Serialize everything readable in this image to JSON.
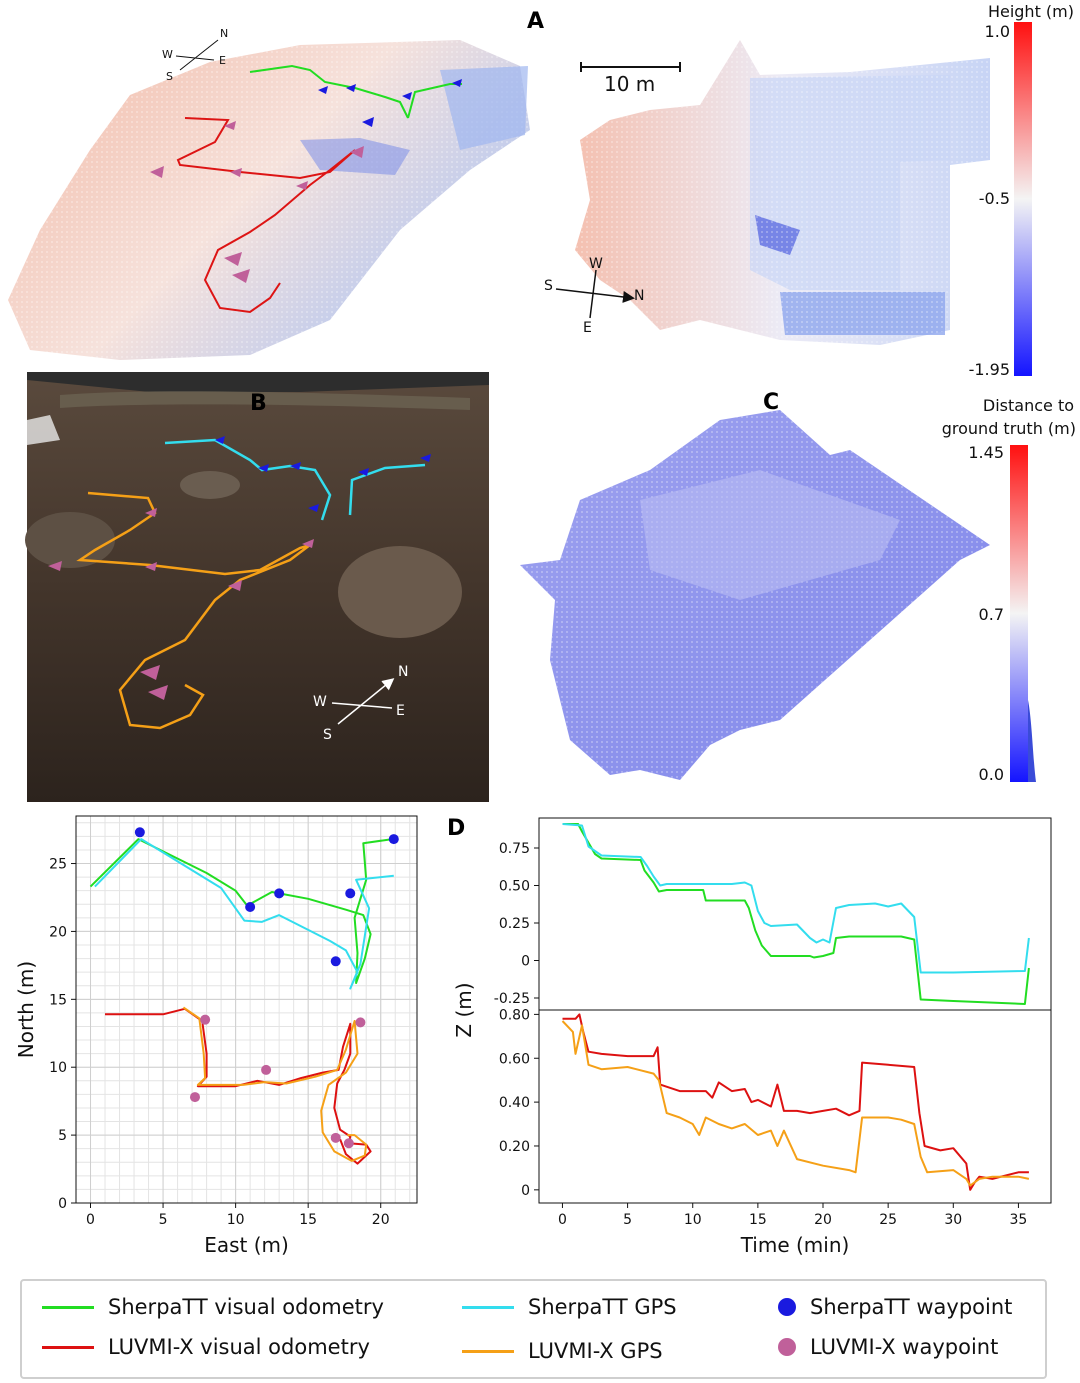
{
  "panel_letters": {
    "a": "A",
    "b": "B",
    "c": "C",
    "d": "D"
  },
  "panel_a": {
    "scale_bar": "10 m",
    "colorbar": {
      "title": "Height (m)",
      "max": "1.0",
      "mid": "-0.5",
      "min": "-1.95"
    },
    "compass_left": {
      "n": "N",
      "e": "E",
      "w": "W",
      "s": "S"
    },
    "compass_right": {
      "n": "N",
      "e": "E",
      "w": "W",
      "s": "S"
    }
  },
  "panel_b": {
    "compass": {
      "n": "N",
      "e": "E",
      "w": "W",
      "s": "S"
    }
  },
  "panel_c": {
    "colorbar": {
      "title_line1": "Distance to",
      "title_line2": "ground truth (m)",
      "max": "1.45",
      "mid": "0.7",
      "min": "0.0"
    }
  },
  "colors": {
    "sherpa_vo": "#22dd22",
    "sherpa_gps": "#33ddee",
    "luvmi_vo": "#dd1111",
    "luvmi_gps": "#f5a017",
    "sherpa_wp": "#1a1adf",
    "luvmi_wp": "#c0609a",
    "cb_high": "#ff1a1a",
    "cb_low": "#1a1aff"
  },
  "legend": {
    "sherpa_vo": "SherpaTT visual odometry",
    "sherpa_gps": "SherpaTT GPS",
    "sherpa_wp": "SherpaTT waypoint",
    "luvmi_vo": "LUVMI-X visual odometry",
    "luvmi_gps": "LUVMI-X GPS",
    "luvmi_wp": "LUVMI-X waypoint"
  },
  "chart_data": [
    {
      "type": "line",
      "panel": "map",
      "xlabel": "East (m)",
      "ylabel": "North (m)",
      "xlim": [
        -1,
        22.5
      ],
      "ylim": [
        0,
        28.5
      ],
      "xticks": [
        0,
        5,
        10,
        15,
        20
      ],
      "yticks": [
        0,
        5,
        10,
        15,
        20,
        25
      ],
      "grid": true,
      "series": [
        {
          "name": "SherpaTT visual odometry",
          "color_key": "sherpa_vo",
          "points": [
            [
              0,
              23.3
            ],
            [
              3.3,
              26.8
            ],
            [
              8,
              24.3
            ],
            [
              10,
              23
            ],
            [
              10.8,
              21.9
            ],
            [
              12.5,
              22.9
            ],
            [
              15,
              22.4
            ],
            [
              17.6,
              21.6
            ],
            [
              18.8,
              21.2
            ],
            [
              19.3,
              19.8
            ],
            [
              18.9,
              18
            ],
            [
              18.3,
              16.2
            ],
            [
              18.4,
              18.4
            ],
            [
              18.2,
              21
            ],
            [
              19,
              23.8
            ],
            [
              18.8,
              26.5
            ],
            [
              20.8,
              26.8
            ]
          ]
        },
        {
          "name": "SherpaTT GPS",
          "color_key": "sherpa_gps",
          "points": [
            [
              0.3,
              23.3
            ],
            [
              3.5,
              26.8
            ],
            [
              9,
              23.2
            ],
            [
              10.6,
              20.8
            ],
            [
              11.8,
              20.7
            ],
            [
              13,
              21.2
            ],
            [
              16.5,
              19.3
            ],
            [
              17.6,
              18.6
            ],
            [
              18.4,
              17
            ],
            [
              17.9,
              15.8
            ],
            [
              18.6,
              17.6
            ],
            [
              19.2,
              21.7
            ],
            [
              18.3,
              23.8
            ],
            [
              20.9,
              24.1
            ]
          ]
        },
        {
          "name": "LUVMI-X visual odometry",
          "color_key": "luvmi_vo",
          "points": [
            [
              1,
              13.9
            ],
            [
              3,
              13.9
            ],
            [
              5,
              13.9
            ],
            [
              6.5,
              14.3
            ],
            [
              7.7,
              13.4
            ],
            [
              8,
              11
            ],
            [
              8,
              9.3
            ],
            [
              7.4,
              8.6
            ],
            [
              10,
              8.6
            ],
            [
              11.5,
              9
            ],
            [
              13,
              8.7
            ],
            [
              14.5,
              9.2
            ],
            [
              16,
              9.6
            ],
            [
              17.1,
              9.8
            ],
            [
              17.4,
              11.5
            ],
            [
              17.9,
              13.2
            ],
            [
              17.9,
              11
            ],
            [
              17.5,
              9.8
            ],
            [
              17,
              8.8
            ],
            [
              16.8,
              7
            ],
            [
              17.2,
              5.4
            ],
            [
              17.9,
              4.9
            ],
            [
              17.8,
              4.4
            ],
            [
              19,
              4.3
            ],
            [
              19.3,
              3.8
            ],
            [
              18.4,
              2.9
            ],
            [
              17.6,
              3.6
            ],
            [
              17.2,
              4.7
            ]
          ]
        },
        {
          "name": "LUVMI-X GPS",
          "color_key": "luvmi_gps",
          "points": [
            [
              6.4,
              14.4
            ],
            [
              7.5,
              13.6
            ],
            [
              7.8,
              11
            ],
            [
              7.9,
              9.2
            ],
            [
              7.4,
              8.7
            ],
            [
              10.5,
              8.7
            ],
            [
              12,
              8.9
            ],
            [
              13.5,
              8.8
            ],
            [
              15.5,
              9.3
            ],
            [
              17,
              9.8
            ],
            [
              17.6,
              11.3
            ],
            [
              18.2,
              13.4
            ],
            [
              18.4,
              11
            ],
            [
              17.6,
              9.6
            ],
            [
              16.4,
              8.7
            ],
            [
              15.9,
              6.8
            ],
            [
              16,
              5.2
            ],
            [
              16.8,
              3.8
            ],
            [
              18,
              3.1
            ],
            [
              18.9,
              3.5
            ],
            [
              19,
              4.3
            ],
            [
              18.2,
              5
            ],
            [
              17.7,
              5
            ]
          ]
        }
      ],
      "sherpa_waypoints": [
        [
          3.4,
          27.3
        ],
        [
          11,
          21.8
        ],
        [
          13,
          22.8
        ],
        [
          17.9,
          22.8
        ],
        [
          16.9,
          17.8
        ],
        [
          20.9,
          26.8
        ]
      ],
      "luvmi_waypoints": [
        [
          7.9,
          13.5
        ],
        [
          18.6,
          13.3
        ],
        [
          12.1,
          9.8
        ],
        [
          7.2,
          7.8
        ],
        [
          16.9,
          4.8
        ],
        [
          17.8,
          4.4
        ]
      ]
    },
    {
      "type": "line",
      "panel": "z-upper",
      "xlabel": "Time (min)",
      "ylabel": "Z (m)",
      "xlim": [
        -1.8,
        37.5
      ],
      "ylim": [
        -0.33,
        0.95
      ],
      "xticks": [
        0,
        5,
        10,
        15,
        20,
        25,
        30,
        35
      ],
      "yticks": [
        -0.25,
        0,
        0.25,
        0.5,
        0.75
      ],
      "series": [
        {
          "name": "SherpaTT visual odometry",
          "color_key": "sherpa_vo",
          "x": [
            0,
            1.2,
            1.5,
            2.5,
            3,
            6,
            6.3,
            7,
            7.4,
            8,
            10.8,
            11,
            14,
            14.3,
            14.8,
            15.3,
            16,
            18,
            19,
            19.3,
            20,
            20.8,
            21,
            22,
            26,
            27,
            27.5,
            30,
            35.5,
            35.8
          ],
          "y": [
            0.91,
            0.91,
            0.86,
            0.71,
            0.68,
            0.67,
            0.6,
            0.52,
            0.46,
            0.47,
            0.47,
            0.4,
            0.4,
            0.35,
            0.2,
            0.1,
            0.03,
            0.03,
            0.03,
            0.02,
            0.03,
            0.05,
            0.15,
            0.16,
            0.16,
            0.14,
            -0.26,
            -0.27,
            -0.29,
            -0.05
          ]
        },
        {
          "name": "SherpaTT GPS",
          "color_key": "sherpa_gps",
          "x": [
            0,
            1.5,
            2,
            3,
            6,
            6.5,
            7,
            7.5,
            8,
            10,
            11,
            13,
            14,
            14.5,
            15,
            15.5,
            16,
            18,
            19,
            19.5,
            20,
            20.5,
            21,
            22,
            24,
            25,
            26,
            27,
            27.5,
            30,
            35.5,
            35.8
          ],
          "y": [
            0.91,
            0.9,
            0.76,
            0.7,
            0.69,
            0.63,
            0.56,
            0.5,
            0.51,
            0.51,
            0.51,
            0.51,
            0.52,
            0.5,
            0.33,
            0.25,
            0.23,
            0.24,
            0.15,
            0.12,
            0.14,
            0.12,
            0.35,
            0.37,
            0.38,
            0.36,
            0.38,
            0.29,
            -0.08,
            -0.08,
            -0.07,
            0.15
          ]
        }
      ]
    },
    {
      "type": "line",
      "panel": "z-lower",
      "xlabel": "Time (min)",
      "ylabel": "Z (m)",
      "xlim": [
        -1.8,
        37.5
      ],
      "ylim": [
        -0.06,
        0.82
      ],
      "xticks": [
        0,
        5,
        10,
        15,
        20,
        25,
        30,
        35
      ],
      "yticks": [
        0,
        0.2,
        0.4,
        0.6,
        0.8
      ],
      "series": [
        {
          "name": "LUVMI-X visual odometry",
          "color_key": "luvmi_vo",
          "x": [
            0,
            1,
            1.3,
            1.6,
            2,
            3,
            5,
            7,
            7.3,
            7.5,
            9,
            11,
            11.5,
            12,
            13,
            14,
            14.5,
            15,
            16,
            16.5,
            17,
            18,
            19,
            20,
            21,
            22,
            22.8,
            23,
            25,
            27,
            27.4,
            27.8,
            29,
            30,
            31,
            31.3,
            31.6,
            32,
            33,
            35,
            35.8
          ],
          "y": [
            0.78,
            0.78,
            0.8,
            0.72,
            0.63,
            0.62,
            0.61,
            0.61,
            0.65,
            0.48,
            0.45,
            0.45,
            0.42,
            0.49,
            0.45,
            0.46,
            0.4,
            0.41,
            0.38,
            0.48,
            0.36,
            0.36,
            0.35,
            0.36,
            0.37,
            0.34,
            0.36,
            0.58,
            0.57,
            0.56,
            0.35,
            0.2,
            0.18,
            0.19,
            0.12,
            0.0,
            0.03,
            0.06,
            0.05,
            0.08,
            0.08
          ]
        },
        {
          "name": "LUVMI-X GPS",
          "color_key": "luvmi_gps",
          "x": [
            0,
            0.8,
            1,
            1.5,
            2,
            3,
            5,
            7,
            7.4,
            8,
            9,
            10,
            10.5,
            11,
            12,
            13,
            14,
            15,
            16,
            16.5,
            17,
            18,
            20,
            22,
            22.5,
            23,
            25,
            26,
            27,
            27.5,
            28,
            30,
            31,
            31.3,
            32,
            33,
            35,
            35.8
          ],
          "y": [
            0.77,
            0.72,
            0.62,
            0.75,
            0.57,
            0.55,
            0.56,
            0.53,
            0.5,
            0.35,
            0.33,
            0.3,
            0.25,
            0.33,
            0.3,
            0.28,
            0.3,
            0.25,
            0.27,
            0.2,
            0.27,
            0.14,
            0.11,
            0.09,
            0.08,
            0.33,
            0.33,
            0.32,
            0.3,
            0.15,
            0.08,
            0.09,
            0.05,
            0.02,
            0.05,
            0.06,
            0.06,
            0.05
          ]
        }
      ]
    }
  ]
}
